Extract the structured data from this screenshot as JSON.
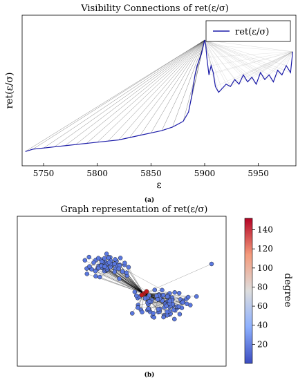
{
  "chart_data": [
    {
      "type": "line",
      "title": "Visibility Connections of ret(ε/σ)",
      "xlabel": "ε",
      "ylabel": "ret(ε/σ)",
      "caption": "(a)",
      "xlim": [
        5730,
        5985
      ],
      "x_ticks": [
        "5750",
        "5800",
        "5850",
        "5900",
        "5950"
      ],
      "grid": false,
      "legend_position": "top-right",
      "series": [
        {
          "name": "ret(ε/σ)",
          "color": "#1a1aa8",
          "x": [
            5733,
            5740,
            5750,
            5760,
            5770,
            5780,
            5790,
            5800,
            5810,
            5820,
            5830,
            5840,
            5850,
            5860,
            5870,
            5880,
            5885,
            5888,
            5891,
            5893,
            5895,
            5897,
            5898,
            5899,
            5900,
            5901,
            5902,
            5904,
            5906,
            5908,
            5910,
            5913,
            5916,
            5920,
            5924,
            5928,
            5932,
            5936,
            5940,
            5944,
            5948,
            5952,
            5956,
            5960,
            5964,
            5968,
            5972,
            5976,
            5980,
            5982
          ],
          "values": [
            0.04,
            0.06,
            0.07,
            0.08,
            0.09,
            0.1,
            0.11,
            0.12,
            0.13,
            0.14,
            0.16,
            0.18,
            0.2,
            0.22,
            0.25,
            0.3,
            0.38,
            0.52,
            0.7,
            0.78,
            0.83,
            0.88,
            0.92,
            0.96,
            1.0,
            0.96,
            0.85,
            0.7,
            0.78,
            0.72,
            0.6,
            0.55,
            0.58,
            0.62,
            0.6,
            0.66,
            0.62,
            0.7,
            0.64,
            0.68,
            0.62,
            0.72,
            0.66,
            0.7,
            0.64,
            0.74,
            0.7,
            0.78,
            0.72,
            0.9
          ]
        }
      ]
    },
    {
      "type": "network",
      "title": "Graph representation of ret(ε/σ)",
      "caption": "(b)",
      "colorbar": {
        "label": "degree",
        "ticks": [
          "140",
          "120",
          "100",
          "80",
          "60",
          "40",
          "20"
        ],
        "range": [
          0,
          152
        ],
        "colors": [
          "#3b4cc0",
          "#8db0fe",
          "#dddddd",
          "#f49a7b",
          "#b40426"
        ]
      },
      "node_color": "#5a78e0",
      "hub_color": "#c21a1a"
    }
  ]
}
